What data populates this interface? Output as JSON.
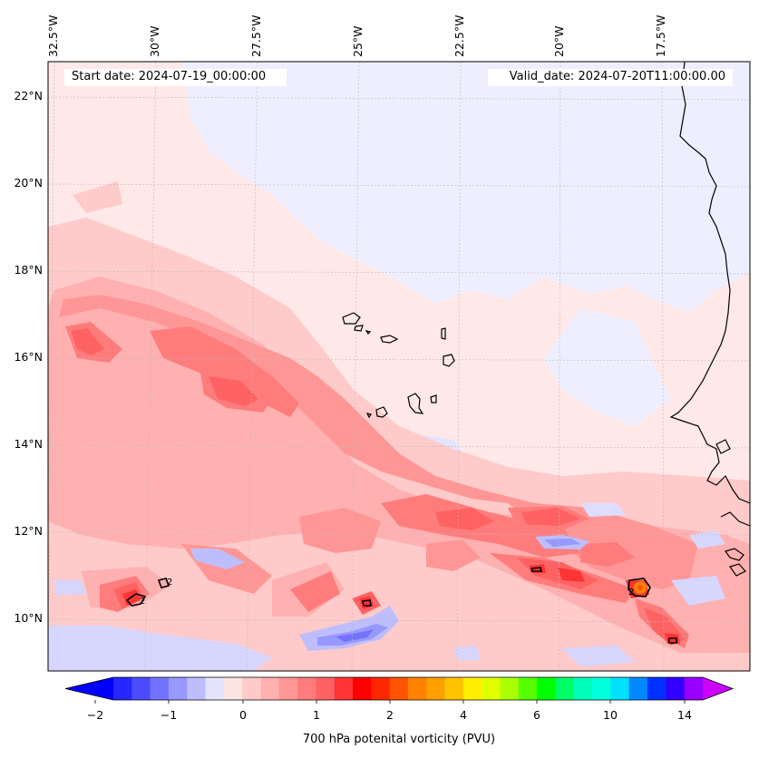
{
  "map": {
    "start_date": "Start date: 2024-07-19_00:00:00",
    "valid_date": "Valid_date: 2024-07-20T11:00:00.00",
    "lon_labels": [
      "32.5°W",
      "30°W",
      "27.5°W",
      "25°W",
      "22.5°W",
      "20°W",
      "17.5°W"
    ],
    "lat_labels": [
      "22°N",
      "20°N",
      "18°N",
      "16°N",
      "14°N",
      "12°N",
      "10°N"
    ],
    "contour_label": "2",
    "colors": {
      "background_light_pink": "#ffe8e8",
      "low_pv_light_blue": "#eeeeff",
      "coastline": "#000000",
      "gridline": "#bbbbbb"
    }
  },
  "colorbar": {
    "label": "700 hPa potenital vorticity (PVU)",
    "tick_labels": [
      "−2",
      "−1",
      "0",
      "1",
      "2",
      "4",
      "6",
      "10",
      "14"
    ],
    "colors": [
      "#0000ff",
      "#2626ff",
      "#4c4cff",
      "#7272ff",
      "#9898ff",
      "#bebeff",
      "#e4e4ff",
      "#ffe4e4",
      "#ffcaca",
      "#ffb0b0",
      "#ff9696",
      "#ff7c7c",
      "#ff6262",
      "#ff3434",
      "#ff0000",
      "#ff2600",
      "#ff5400",
      "#ff8200",
      "#ffa000",
      "#ffc400",
      "#ffee00",
      "#e0ff00",
      "#aaff00",
      "#55ff00",
      "#00ff00",
      "#00ff66",
      "#00ffbb",
      "#00ffdd",
      "#00e0ff",
      "#0088ff",
      "#0030ff",
      "#3300ff",
      "#9900ff"
    ],
    "extend_low_color": "#0000ff",
    "extend_high_color": "#cc00ff"
  }
}
